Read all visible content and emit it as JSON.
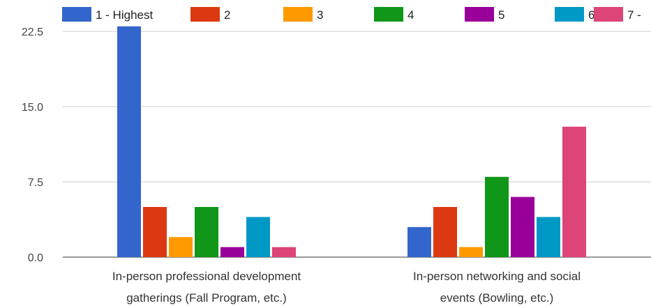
{
  "chart_data": {
    "type": "bar",
    "categories": [
      [
        "In-person professional development",
        "gatherings (Fall Program, etc.)"
      ],
      [
        "In-person networking and social",
        "events (Bowling, etc.)"
      ]
    ],
    "series": [
      {
        "name": "1 - Highest",
        "color": "#3366cc",
        "values": [
          23,
          3
        ]
      },
      {
        "name": "2",
        "color": "#dc3912",
        "values": [
          5,
          5
        ]
      },
      {
        "name": "3",
        "color": "#ff9900",
        "values": [
          2,
          1
        ]
      },
      {
        "name": "4",
        "color": "#109618",
        "values": [
          5,
          8
        ]
      },
      {
        "name": "5",
        "color": "#990099",
        "values": [
          1,
          6
        ]
      },
      {
        "name": "6",
        "color": "#0099c6",
        "values": [
          4,
          4
        ]
      },
      {
        "name": "7 -",
        "color": "#dd4477",
        "values": [
          1,
          13
        ]
      }
    ],
    "y_ticks": [
      "0.0",
      "7.5",
      "15.0",
      "22.5"
    ],
    "ylim": [
      0,
      22.5
    ],
    "grid": true,
    "legend_position": "top"
  }
}
